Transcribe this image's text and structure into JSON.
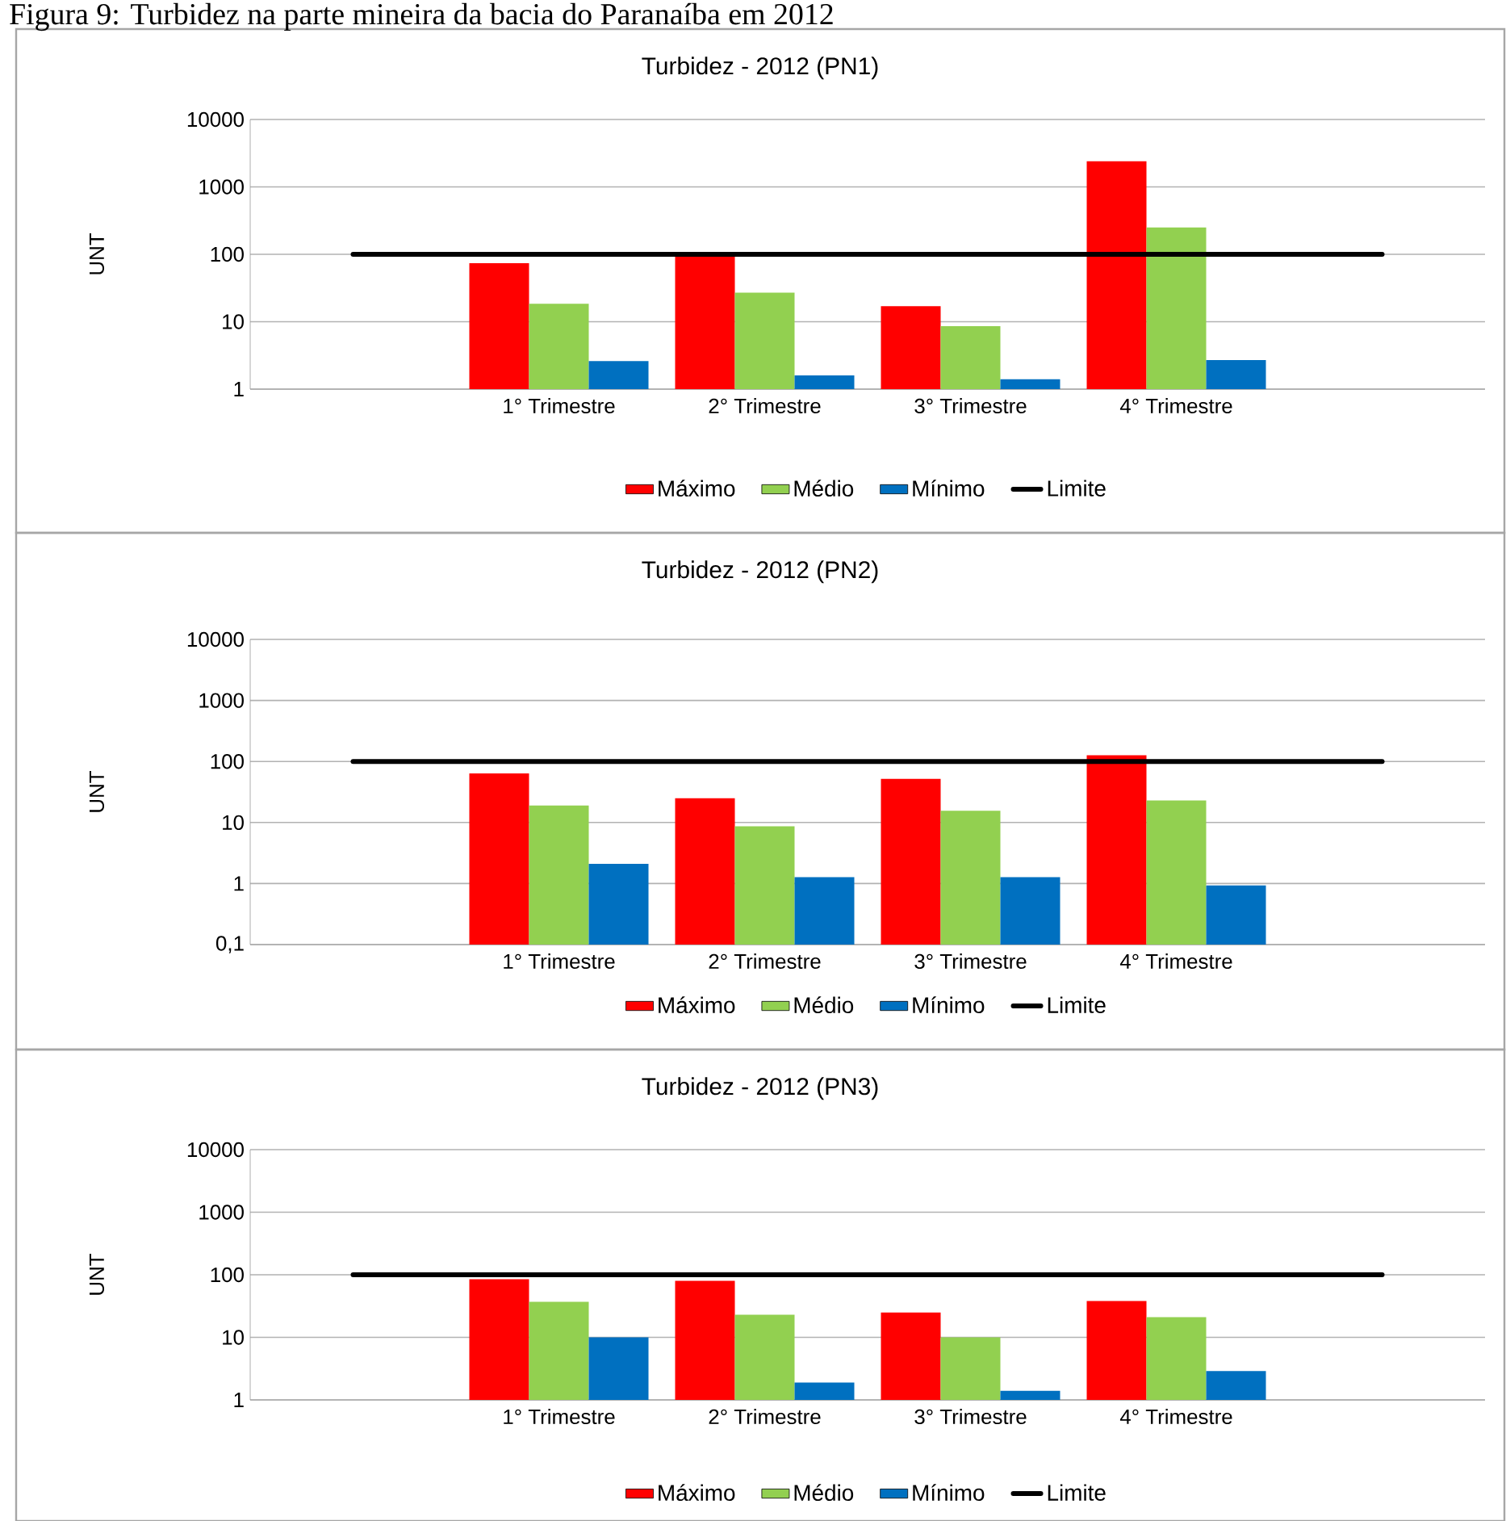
{
  "chart_data": [
    {
      "type": "bar",
      "title": "Turbidez - 2012 (PN1)",
      "ylabel": "UNT",
      "annotations": [
        "Figura 9: Turbidez na parte mineira da bacia do Paranaíba em 2012"
      ],
      "categories": [
        null,
        "1° Trimestre",
        "2° Trimestre",
        "3° Trimestre",
        "4° Trimestre",
        null
      ],
      "series": [
        {
          "name": "Máximo",
          "color": "#ff0000",
          "values": [
            null,
            74,
            100,
            17,
            2400,
            null
          ]
        },
        {
          "name": "Médio",
          "color": "#92d050",
          "values": [
            null,
            18.5,
            27,
            8.6,
            250,
            null
          ]
        },
        {
          "name": "Mínimo",
          "color": "#0070c0",
          "values": [
            null,
            2.6,
            1.6,
            1.4,
            2.7,
            null
          ]
        },
        {
          "name": "Limite",
          "color": "#000000",
          "type": "line",
          "values": [
            100,
            100,
            100,
            100,
            100,
            100
          ]
        }
      ],
      "log": "y",
      "ylim": [
        1,
        10000
      ],
      "yticks": [
        1,
        10,
        100,
        1000,
        10000
      ],
      "grid": "y",
      "legend": "bottom",
      "marker": "none"
    },
    {
      "type": "bar",
      "title": "Turbidez - 2012 (PN2)",
      "ylabel": "UNT",
      "categories": [
        null,
        "1° Trimestre",
        "2° Trimestre",
        "3° Trimestre",
        "4° Trimestre",
        null
      ],
      "series": [
        {
          "name": "Máximo",
          "color": "#ff0000",
          "values": [
            null,
            64,
            25,
            52,
            127,
            null
          ]
        },
        {
          "name": "Médio",
          "color": "#92d050",
          "values": [
            null,
            19,
            8.7,
            15.6,
            23,
            null
          ]
        },
        {
          "name": "Mínimo",
          "color": "#0070c0",
          "values": [
            null,
            2.1,
            1.27,
            1.27,
            0.93,
            null
          ]
        },
        {
          "name": "Limite",
          "color": "#000000",
          "type": "line",
          "values": [
            100,
            100,
            100,
            100,
            100,
            100
          ]
        }
      ],
      "log": "y",
      "ylim": [
        0.1,
        10000
      ],
      "yticks": [
        {
          "value": 0.1,
          "label": "0,1"
        },
        1,
        10,
        100,
        1000,
        10000
      ],
      "grid": "y",
      "legend": "bottom",
      "marker": "none"
    },
    {
      "type": "bar",
      "title": "Turbidez - 2012 (PN3)",
      "ylabel": "UNT",
      "categories": [
        null,
        "1° Trimestre",
        "2° Trimestre",
        "3° Trimestre",
        "4° Trimestre",
        null
      ],
      "series": [
        {
          "name": "Máximo",
          "color": "#ff0000",
          "values": [
            null,
            85,
            80,
            25,
            38,
            null
          ]
        },
        {
          "name": "Médio",
          "color": "#92d050",
          "values": [
            null,
            37,
            23,
            10,
            21,
            null
          ]
        },
        {
          "name": "Mínimo",
          "color": "#0070c0",
          "values": [
            null,
            10,
            1.9,
            1.4,
            2.9,
            null
          ]
        },
        {
          "name": "Limite",
          "color": "#000000",
          "type": "line",
          "values": [
            100,
            100,
            100,
            100,
            100,
            100
          ]
        }
      ],
      "log": "y",
      "ylim": [
        1,
        10000
      ],
      "yticks": [
        1,
        10,
        100,
        1000,
        10000
      ],
      "grid": "y",
      "legend": "bottom",
      "marker": "none"
    }
  ]
}
